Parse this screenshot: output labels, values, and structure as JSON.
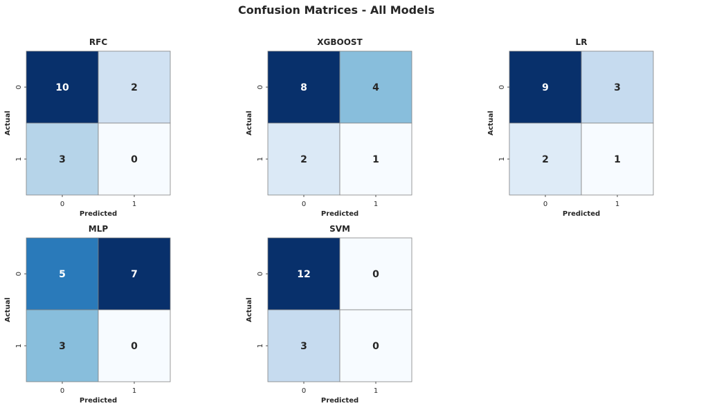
{
  "figure": {
    "title": "Confusion Matrices - All Models"
  },
  "colors": {
    "background": "#ffffff",
    "text": "#262626",
    "cell_border": "#808080",
    "colormap": "Blues",
    "colormap_stops": [
      "#f7fbff",
      "#deebf7",
      "#c6dbef",
      "#9ecae1",
      "#6baed6",
      "#4292c6",
      "#2171b5",
      "#08519c",
      "#08306b"
    ],
    "annotation_light": "#ffffff",
    "annotation_dark": "#262626"
  },
  "chart_data": [
    {
      "type": "heatmap",
      "title": "RFC",
      "xlabel": "Predicted",
      "ylabel": "Actual",
      "x_ticks": [
        "0",
        "1"
      ],
      "y_ticks": [
        "0",
        "1"
      ],
      "values": [
        [
          10,
          2
        ],
        [
          3,
          0
        ]
      ],
      "colorbar": false
    },
    {
      "type": "heatmap",
      "title": "XGBOOST",
      "xlabel": "Predicted",
      "ylabel": "Actual",
      "x_ticks": [
        "0",
        "1"
      ],
      "y_ticks": [
        "0",
        "1"
      ],
      "values": [
        [
          8,
          4
        ],
        [
          2,
          1
        ]
      ],
      "colorbar": false
    },
    {
      "type": "heatmap",
      "title": "LR",
      "xlabel": "Predicted",
      "ylabel": "Actual",
      "x_ticks": [
        "0",
        "1"
      ],
      "y_ticks": [
        "0",
        "1"
      ],
      "values": [
        [
          9,
          3
        ],
        [
          2,
          1
        ]
      ],
      "colorbar": false
    },
    {
      "type": "heatmap",
      "title": "MLP",
      "xlabel": "Predicted",
      "ylabel": "Actual",
      "x_ticks": [
        "0",
        "1"
      ],
      "y_ticks": [
        "0",
        "1"
      ],
      "values": [
        [
          5,
          7
        ],
        [
          3,
          0
        ]
      ],
      "colorbar": false
    },
    {
      "type": "heatmap",
      "title": "SVM",
      "xlabel": "Predicted",
      "ylabel": "Actual",
      "x_ticks": [
        "0",
        "1"
      ],
      "y_ticks": [
        "0",
        "1"
      ],
      "values": [
        [
          12,
          0
        ],
        [
          3,
          0
        ]
      ],
      "colorbar": false
    }
  ]
}
